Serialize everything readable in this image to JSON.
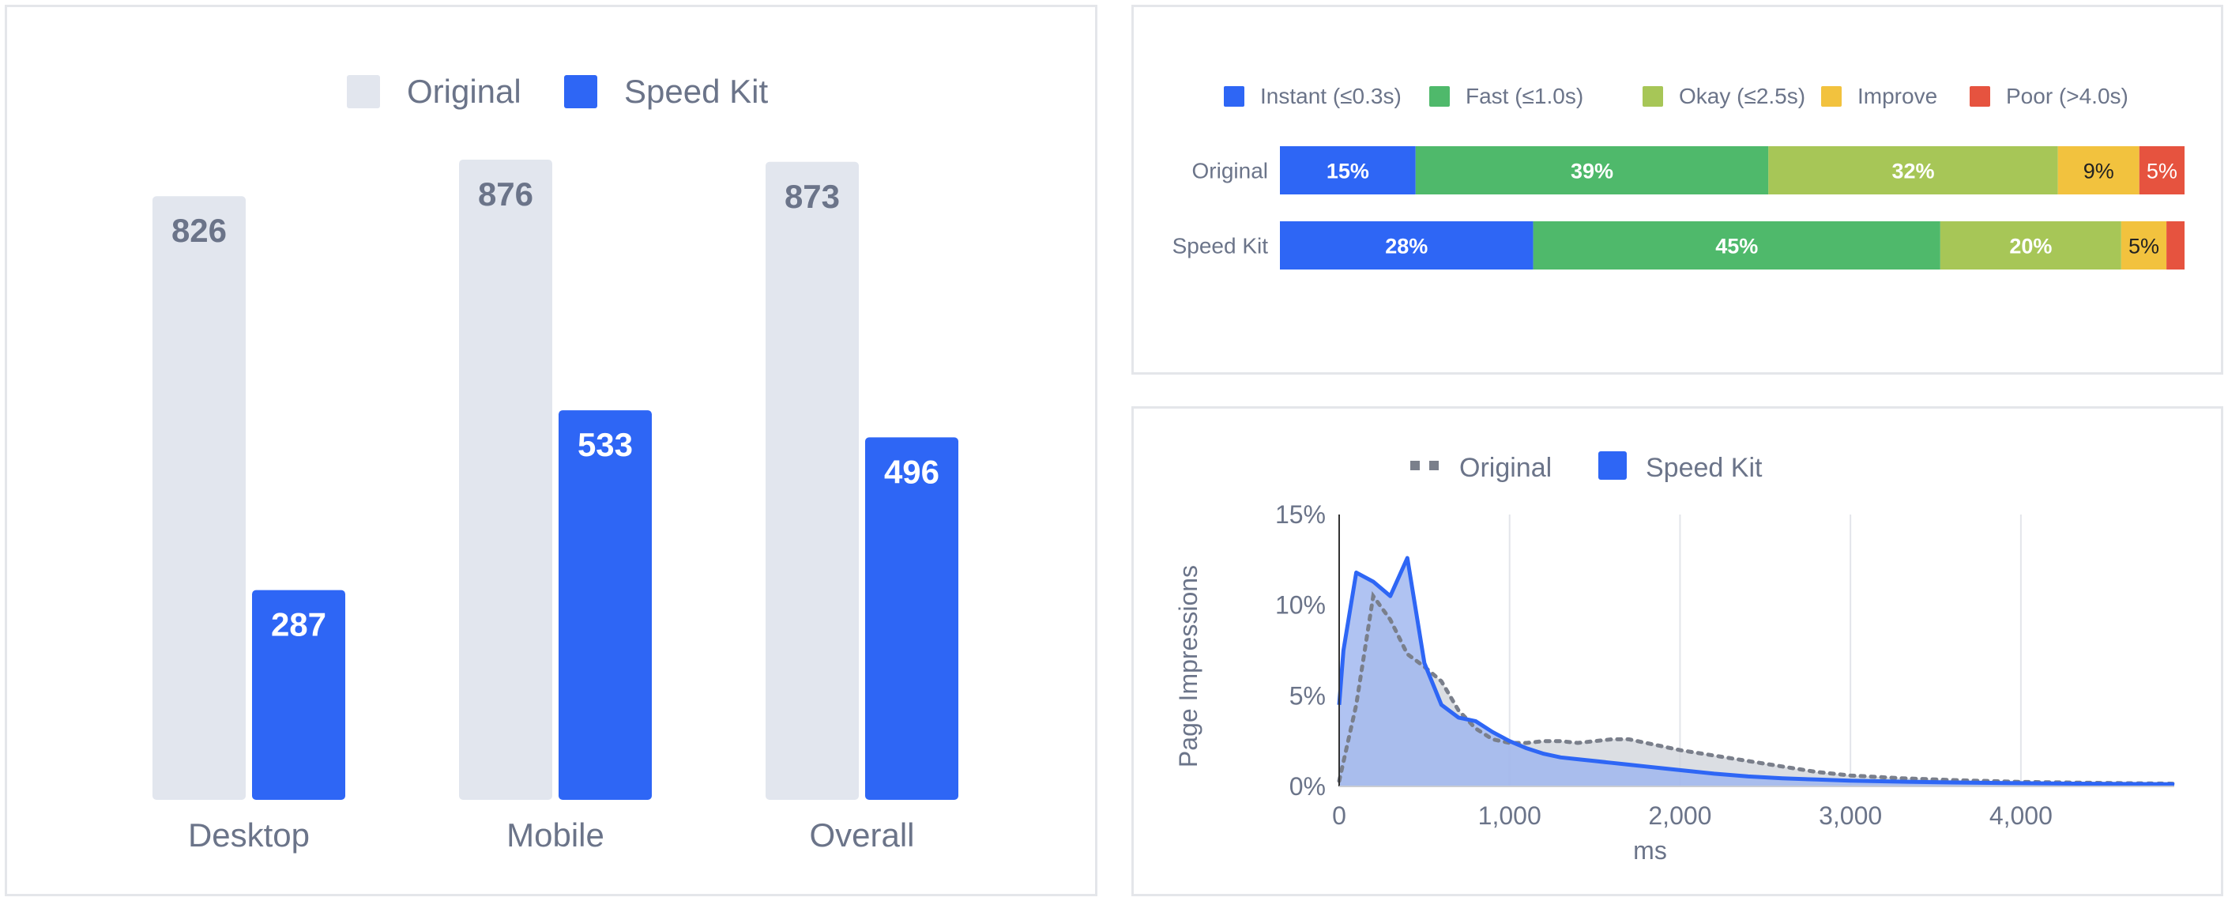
{
  "colors": {
    "original": "#e2e6ee",
    "speedkit": "#2e66f5",
    "original_value_text": "#6b7489",
    "speedkit_value_text": "#ffffff",
    "instant": "#2e66f5",
    "fast": "#4fb96b",
    "okay": "#a7c657",
    "improve": "#f2c23e",
    "poor": "#e6533f",
    "grid": "#e3e5ea",
    "original_line": "#7a7f8b",
    "original_fill": "#cfd3da",
    "speedkit_fill": "#9cb4ef"
  },
  "chart_data": [
    {
      "type": "bar",
      "legend": [
        "Original",
        "Speed Kit"
      ],
      "categories": [
        "Desktop",
        "Mobile",
        "Overall"
      ],
      "series": [
        {
          "name": "Original",
          "values": [
            826,
            876,
            873
          ]
        },
        {
          "name": "Speed Kit",
          "values": [
            287,
            533,
            496
          ]
        }
      ],
      "ylim": [
        0,
        876
      ],
      "grid": false,
      "legend_position": "top-center"
    },
    {
      "type": "bar",
      "stacked": true,
      "orientation": "horizontal",
      "legend": [
        "Instant (≤0.3s)",
        "Fast (≤1.0s)",
        "Okay (≤2.5s)",
        "Improve",
        "Poor (>4.0s)"
      ],
      "categories": [
        "Original",
        "Speed Kit"
      ],
      "series": [
        {
          "name": "Instant (≤0.3s)",
          "values": [
            15,
            28
          ],
          "labels": [
            "15%",
            "28%"
          ]
        },
        {
          "name": "Fast (≤1.0s)",
          "values": [
            39,
            45
          ],
          "labels": [
            "39%",
            "45%"
          ]
        },
        {
          "name": "Okay (≤2.5s)",
          "values": [
            32,
            20
          ],
          "labels": [
            "32%",
            "20%"
          ]
        },
        {
          "name": "Improve",
          "values": [
            9,
            5
          ],
          "labels": [
            "9%",
            "5%"
          ]
        },
        {
          "name": "Poor (>4.0s)",
          "values": [
            5,
            2
          ],
          "labels": [
            "5%",
            ""
          ]
        }
      ],
      "legend_position": "top-center"
    },
    {
      "type": "area",
      "legend": [
        "Original",
        "Speed Kit"
      ],
      "xlabel": "ms",
      "ylabel": "Page Impressions",
      "xlim": [
        0,
        4900
      ],
      "ylim": [
        0,
        15
      ],
      "xticks": [
        0,
        1000,
        2000,
        3000,
        4000
      ],
      "xtick_labels": [
        "0",
        "1,000",
        "2,000",
        "3,000",
        "4,000"
      ],
      "yticks": [
        0,
        5,
        10,
        15
      ],
      "ytick_labels": [
        "0%",
        "5%",
        "10%",
        "15%"
      ],
      "grid": true,
      "legend_position": "top-center",
      "series": [
        {
          "name": "Original",
          "style": "dotted",
          "x": [
            0,
            100,
            200,
            300,
            400,
            500,
            600,
            700,
            800,
            900,
            1000,
            1100,
            1200,
            1300,
            1400,
            1500,
            1600,
            1700,
            1800,
            1900,
            2000,
            2200,
            2400,
            2600,
            2800,
            3000,
            3300,
            3600,
            4000,
            4400,
            4900
          ],
          "y": [
            0.3,
            4.5,
            10.5,
            9.2,
            7.3,
            6.6,
            5.8,
            4.2,
            3.2,
            2.6,
            2.4,
            2.4,
            2.5,
            2.5,
            2.4,
            2.5,
            2.6,
            2.6,
            2.4,
            2.2,
            2.0,
            1.7,
            1.4,
            1.1,
            0.8,
            0.6,
            0.45,
            0.35,
            0.25,
            0.2,
            0.15
          ]
        },
        {
          "name": "Speed Kit",
          "style": "solid",
          "x": [
            0,
            25,
            100,
            200,
            300,
            400,
            500,
            600,
            700,
            800,
            900,
            1000,
            1100,
            1200,
            1300,
            1400,
            1500,
            1600,
            1700,
            1800,
            1900,
            2000,
            2200,
            2400,
            2600,
            2800,
            3000,
            3300,
            3600,
            4000,
            4400,
            4900
          ],
          "y": [
            4.5,
            7.5,
            11.8,
            11.3,
            10.5,
            12.6,
            6.8,
            4.5,
            3.8,
            3.6,
            3.0,
            2.5,
            2.1,
            1.8,
            1.6,
            1.5,
            1.4,
            1.3,
            1.2,
            1.1,
            1.0,
            0.9,
            0.7,
            0.55,
            0.45,
            0.38,
            0.32,
            0.26,
            0.22,
            0.18,
            0.15,
            0.12
          ]
        }
      ]
    }
  ]
}
